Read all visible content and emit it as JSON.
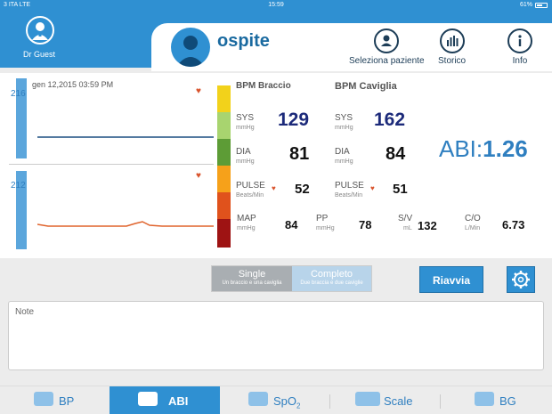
{
  "status": {
    "carrier": "3 ITA  LTE",
    "time": "15:59",
    "battery": "61%",
    "battery_level": 0.61
  },
  "user": {
    "name": "Dr Guest"
  },
  "patient": {
    "name": "ospite"
  },
  "header_buttons": [
    {
      "label": "Seleziona paziente",
      "icon": "person-icon"
    },
    {
      "label": "Storico",
      "icon": "bar-chart-icon"
    },
    {
      "label": "Info",
      "icon": "info-icon"
    }
  ],
  "gauges": {
    "arm_value": "216",
    "ankle_value": "212"
  },
  "date": "gen 12,2015 03:59 PM",
  "columns": {
    "arm": "BPM Braccio",
    "ankle": "BPM Caviglia"
  },
  "rows": {
    "sys": {
      "label": "SYS",
      "unit": "mmHg",
      "arm": "129",
      "ankle": "162"
    },
    "dia": {
      "label": "DIA",
      "unit": "mmHg",
      "arm": "81",
      "ankle": "84"
    },
    "pulse": {
      "label": "PULSE",
      "unit": "Beats/Min",
      "arm": "52",
      "ankle": "51"
    }
  },
  "abi": {
    "label": "ABI:",
    "value": "1.26"
  },
  "metrics": {
    "map": {
      "label": "MAP",
      "unit": "mmHg",
      "value": "84"
    },
    "pp": {
      "label": "PP",
      "unit": "mmHg",
      "value": "78"
    },
    "sv": {
      "label": "S/V",
      "unit": "mL",
      "value": "132"
    },
    "co": {
      "label": "C/O",
      "unit": "L/Min",
      "value": "6.73"
    }
  },
  "mode": {
    "single": {
      "label": "Single",
      "sub": "Un braccio e una caviglia"
    },
    "complete": {
      "label": "Completo",
      "sub": "Due braccia e due caviglie"
    }
  },
  "restart_label": "Riavvia",
  "notes_label": "Note",
  "tabs": [
    {
      "label": "BP",
      "icon": "bp-cuff-icon",
      "active": false
    },
    {
      "label": "ABI",
      "icon": "abi-cuff-icon",
      "active": true
    },
    {
      "label": "SpO",
      "sub": "2",
      "icon": "spo2-icon",
      "active": false
    },
    {
      "label": "Scale",
      "icon": "scale-icon",
      "active": false
    },
    {
      "label": "BG",
      "icon": "glucose-icon",
      "active": false
    }
  ],
  "colors": {
    "accent": "#2f90d2",
    "scale": [
      "#f2d21b",
      "#a8d46f",
      "#5d9c36",
      "#f6a11a",
      "#e0521c",
      "#9e1313"
    ],
    "arm_trace": "#1c4f80",
    "ankle_trace": "#e0632c"
  }
}
